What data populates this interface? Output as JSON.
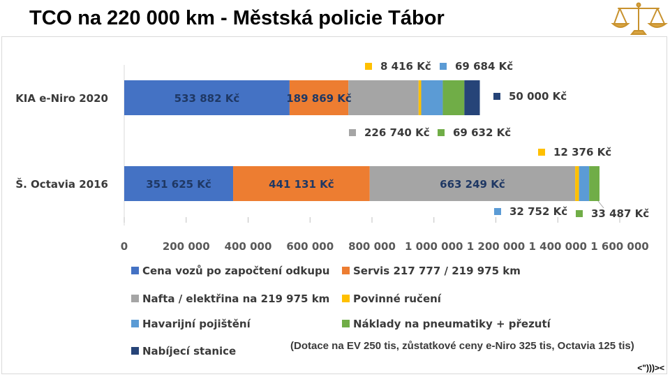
{
  "header": {
    "title": "TCO na 220 000 km - Městská policie Tábor",
    "logo_icon": "scales-of-justice-icon"
  },
  "note": "(Dotace na EV 250 tis, zůstatkové ceny e-Niro 325 tis, Octavia 125 tis)",
  "signature": "<\")))><",
  "chart_data": {
    "type": "bar",
    "orientation": "horizontal",
    "stacked": true,
    "categories": [
      "KIA e-Niro 2020",
      "Š. Octavia 2016"
    ],
    "series": [
      {
        "name": "Cena vozů po započtení odkupu",
        "color": "#4472c4",
        "values": [
          533882,
          351625
        ],
        "labels": [
          "533 882 Kč",
          "351 625 Kč"
        ]
      },
      {
        "name": "Servis 217 777 / 219 975 km",
        "color": "#ed7d31",
        "values": [
          189869,
          441131
        ],
        "labels": [
          "189 869 Kč",
          "441 131 Kč"
        ]
      },
      {
        "name": "Nafta / elektřina na 219 975 km",
        "color": "#a5a5a5",
        "values": [
          226740,
          663249
        ],
        "labels": [
          "226 740 Kč",
          "663 249 Kč"
        ]
      },
      {
        "name": "Povinné ručení",
        "color": "#ffc000",
        "values": [
          8416,
          12376
        ],
        "labels": [
          "8 416 Kč",
          "12 376 Kč"
        ]
      },
      {
        "name": "Havarijní pojištění",
        "color": "#5b9bd5",
        "values": [
          69684,
          32752
        ],
        "labels": [
          "69 684 Kč",
          "32 752 Kč"
        ]
      },
      {
        "name": "Náklady na pneumatiky + přezutí",
        "color": "#70ad47",
        "values": [
          69632,
          33487
        ],
        "labels": [
          "69 632 Kč",
          "33 487 Kč"
        ]
      },
      {
        "name": "Nabíjecí stanice",
        "color": "#264478",
        "values": [
          50000,
          0
        ],
        "labels": [
          "50 000 Kč",
          ""
        ]
      }
    ],
    "x_ticks": [
      0,
      200000,
      400000,
      600000,
      800000,
      1000000,
      1200000,
      1400000,
      1600000
    ],
    "x_tick_labels": [
      "0",
      "200 000",
      "400 000",
      "600 000",
      "800 000",
      "1 000 000",
      "1 200 000",
      "1 400 000",
      "1 600 000"
    ],
    "xlim": [
      0,
      1600000
    ],
    "legend_position": "bottom"
  }
}
